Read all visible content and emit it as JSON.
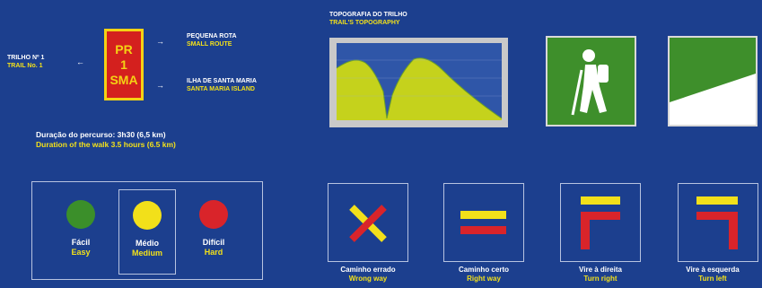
{
  "trail": {
    "number_pt": "TRILHO Nº 1",
    "number_en": "TRAIL No. 1"
  },
  "sign": {
    "line1": "PR",
    "line2": "1",
    "line3": "SMA"
  },
  "route_type": {
    "pt": "PEQUENA ROTA",
    "en": "SMALL ROUTE"
  },
  "island": {
    "pt": "ILHA DE SANTA MARIA",
    "en": "SANTA MARIA ISLAND"
  },
  "duration": {
    "pt": "Duração do percurso: 3h30 (6,5 km)",
    "en": "Duration of the walk 3.5 hours (6.5 km)"
  },
  "topography": {
    "title_pt": "TOPOGRAFIA DO TRILHO",
    "title_en": "TRAIL'S TOPOGRAPHY"
  },
  "difficulty": [
    {
      "pt": "Fácil",
      "en": "Easy",
      "color": "#3b8f2a"
    },
    {
      "pt": "Médio",
      "en": "Medium",
      "color": "#f2e01a"
    },
    {
      "pt": "Difícil",
      "en": "Hard",
      "color": "#d9242a"
    }
  ],
  "waymarks": [
    {
      "pt": "Caminho errado",
      "en": "Wrong way",
      "icon": "wrong-way-icon"
    },
    {
      "pt": "Caminho certo",
      "en": "Right way",
      "icon": "right-way-icon"
    },
    {
      "pt": "Vire à direita",
      "en": "Turn right",
      "icon": "turn-right-icon"
    },
    {
      "pt": "Vire à esquerda",
      "en": "Turn left",
      "icon": "turn-left-icon"
    }
  ],
  "colors": {
    "background": "#1c3f8e",
    "yellow": "#f2e01a",
    "red": "#d9242a",
    "green": "#3e8f2b"
  }
}
